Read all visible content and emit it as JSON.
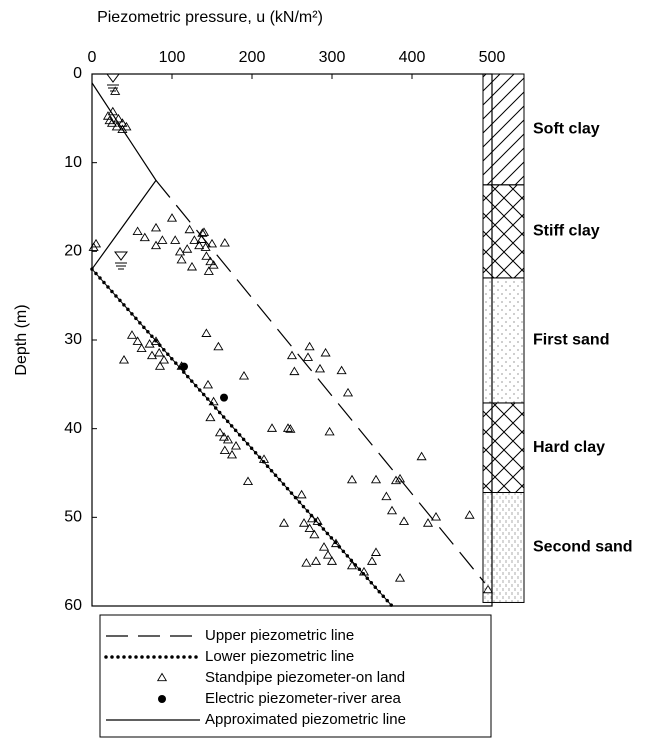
{
  "chart_data": {
    "type": "scatter",
    "title": "Piezometric pressure, u (kN/m²)",
    "y_label": "Depth (m)",
    "xlim": [
      0,
      500
    ],
    "xticks": [
      0,
      100,
      200,
      300,
      400,
      500
    ],
    "ylim": [
      0,
      60
    ],
    "yticks": [
      0,
      10,
      20,
      30,
      40,
      50,
      60
    ],
    "y_inverted": true,
    "x_axis_position": "top",
    "series": [
      {
        "name": "Upper piezometric line",
        "type": "line",
        "style": "dashed",
        "color": "#000000",
        "x": [
          80,
          491
        ],
        "y": [
          12,
          57.4
        ]
      },
      {
        "name": "Lower piezometric line",
        "type": "line",
        "style": "dotted",
        "color": "#000000",
        "x": [
          0,
          375
        ],
        "y": [
          22,
          60
        ]
      },
      {
        "name": "Standpipe piezometer-on land",
        "type": "scatter",
        "style": "triangle",
        "color": "#000000",
        "x": [
          29,
          20,
          26,
          33,
          38,
          25,
          31,
          38,
          43,
          22,
          5,
          2,
          100,
          57,
          66,
          80,
          88,
          104,
          122,
          128,
          138,
          134,
          80,
          110,
          112,
          142,
          137,
          143,
          148,
          166,
          140,
          119,
          150,
          125,
          152,
          146,
          50,
          57,
          62,
          72,
          80,
          84,
          75,
          40,
          90,
          85,
          112,
          143,
          158,
          250,
          253,
          272,
          270,
          285,
          292,
          312,
          320,
          190,
          145,
          148,
          152,
          225,
          245,
          248,
          297,
          160,
          165,
          170,
          166,
          175,
          180,
          215,
          355,
          412,
          380,
          385,
          195,
          262,
          325,
          368,
          375,
          390,
          420,
          430,
          472,
          240,
          265,
          272,
          275,
          278,
          282,
          290,
          295,
          305,
          300,
          268,
          280,
          325,
          340,
          350,
          355,
          385,
          495
        ],
        "y": [
          2,
          4.8,
          4.3,
          5.1,
          5.6,
          5.6,
          6,
          6.3,
          6,
          5.3,
          19.2,
          19.6,
          16.3,
          17.8,
          18.5,
          17.4,
          18.8,
          18.8,
          17.6,
          18.8,
          18,
          19.4,
          19.4,
          20.1,
          21,
          19.6,
          18.7,
          20.6,
          21.2,
          19.1,
          17.9,
          19.8,
          19.2,
          21.8,
          21.6,
          22.3,
          29.5,
          30.2,
          31,
          30.5,
          30.2,
          31.5,
          31.8,
          32.3,
          32.3,
          33,
          33,
          29.3,
          30.8,
          31.8,
          33.6,
          30.8,
          32,
          33.3,
          31.5,
          33.5,
          36,
          34.1,
          35.1,
          38.8,
          37,
          40,
          40,
          40.1,
          40.4,
          40.5,
          41,
          41.3,
          42.5,
          43,
          42,
          43.5,
          45.8,
          43.2,
          45.9,
          45.7,
          46,
          47.5,
          45.8,
          47.7,
          49.3,
          50.5,
          50.7,
          50,
          49.8,
          50.7,
          50.7,
          51.3,
          50.2,
          52,
          50.5,
          53.4,
          54.3,
          53,
          55,
          55.2,
          55,
          55.5,
          56.2,
          55,
          54,
          56.9,
          58.2
        ]
      },
      {
        "name": "Electric piezometer-river area",
        "type": "scatter",
        "style": "filled",
        "color": "#000000",
        "x": [
          115,
          165
        ],
        "y": [
          33,
          36.5
        ]
      },
      {
        "name": "Approximated piezometric line",
        "type": "line",
        "style": "solid",
        "color": "#000000",
        "x": [
          0,
          80,
          0
        ],
        "y": [
          1,
          12,
          22
        ]
      }
    ],
    "soil_layers": [
      {
        "name": "Soft clay",
        "top": 0,
        "bottom": 12.5,
        "pattern": "diagonal"
      },
      {
        "name": "Stiff clay",
        "top": 12.5,
        "bottom": 23,
        "pattern": "cross"
      },
      {
        "name": "First sand",
        "top": 23,
        "bottom": 37.1,
        "pattern": "dots"
      },
      {
        "name": "Hard clay",
        "top": 37.1,
        "bottom": 47.2,
        "pattern": "cross"
      },
      {
        "name": "Second sand",
        "top": 47.2,
        "bottom": 59.6,
        "pattern": "sand"
      }
    ]
  }
}
